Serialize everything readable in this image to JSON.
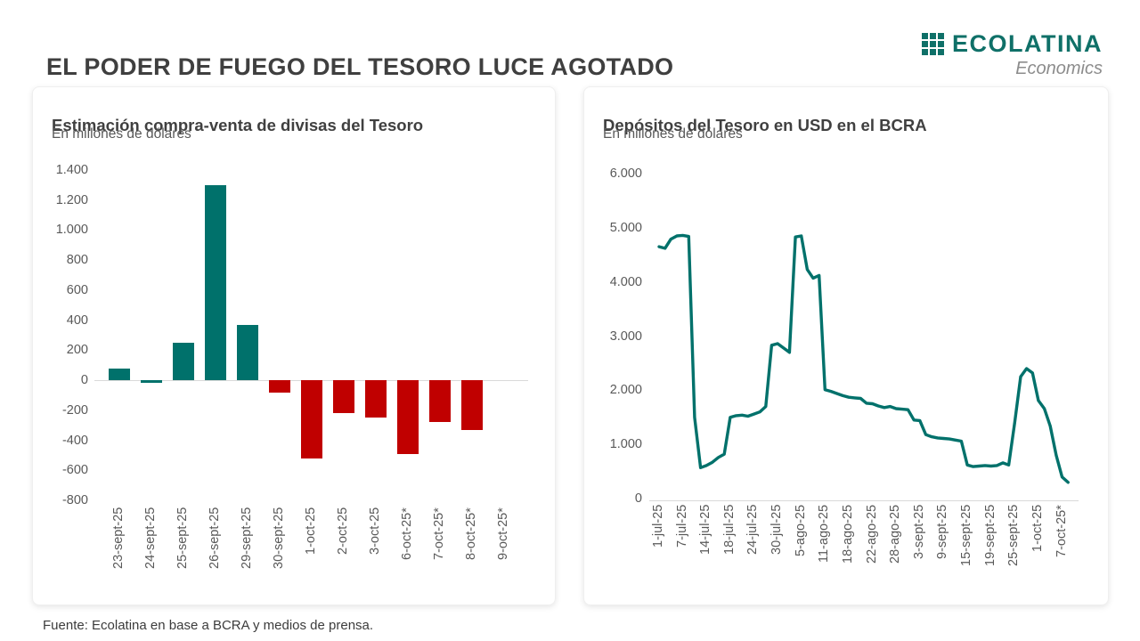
{
  "page": {
    "title": "EL PODER DE FUEGO DEL TESORO LUCE AGOTADO",
    "footer": "Fuente: Ecolatina en base a BCRA y medios de prensa."
  },
  "logo": {
    "name": "ECOLATINA",
    "tagline": "Economics"
  },
  "colors": {
    "brand_teal": "#0F7068",
    "series_teal": "#00716B",
    "series_red": "#C00000",
    "grid": "#D9D9D9",
    "axis_text": "#595959",
    "title_text": "#3F3F3F"
  },
  "chart_data": [
    {
      "type": "bar",
      "title": "Estimación compra-venta de divisas del Tesoro",
      "subtitle": "En millones de dólares",
      "categories": [
        "23-sept-25",
        "24-sept-25",
        "25-sept-25",
        "26-sept-25",
        "29-sept-25",
        "30-sept-25",
        "1-oct-25",
        "2-oct-25",
        "3-oct-25",
        "6-oct-25*",
        "7-oct-25*",
        "8-oct-25*",
        "9-oct-25*"
      ],
      "values": [
        80,
        -20,
        250,
        1300,
        370,
        -80,
        -520,
        -220,
        -250,
        -490,
        -280,
        -330,
        0
      ],
      "bar_colors": [
        "#00716B",
        "#00716B",
        "#00716B",
        "#00716B",
        "#00716B",
        "#C00000",
        "#C00000",
        "#C00000",
        "#C00000",
        "#C00000",
        "#C00000",
        "#C00000",
        "#00716B"
      ],
      "ylim": [
        -800,
        1400
      ],
      "yticks": [
        1400,
        1200,
        1000,
        800,
        600,
        400,
        200,
        0,
        -200,
        -400,
        -600,
        -800
      ],
      "ytick_labels": [
        "1.400",
        "1.200",
        "1.000",
        "800",
        "600",
        "400",
        "200",
        "0",
        "-200",
        "-400",
        "-600",
        "-800"
      ],
      "grid": "zero-line-only",
      "legend": "none"
    },
    {
      "type": "line",
      "title": "Depósitos del Tesoro en USD en el BCRA",
      "subtitle": "En millones de dólares",
      "line_color": "#00716B",
      "x": [
        "1-jul",
        "2-jul",
        "3-jul",
        "4-jul",
        "7-jul",
        "8-jul",
        "10-jul",
        "11-jul",
        "14-jul",
        "15-jul",
        "16-jul",
        "17-jul",
        "18-jul",
        "21-jul",
        "22-jul",
        "23-jul",
        "24-jul",
        "25-jul",
        "28-jul",
        "29-jul",
        "30-jul",
        "31-jul",
        "1-ago",
        "4-ago",
        "5-ago",
        "6-ago",
        "7-ago",
        "8-ago",
        "11-ago",
        "12-ago",
        "13-ago",
        "14-ago",
        "18-ago",
        "19-ago",
        "20-ago",
        "21-ago",
        "22-ago",
        "25-ago",
        "26-ago",
        "27-ago",
        "28-ago",
        "29-ago",
        "1-sept",
        "2-sept",
        "3-sept",
        "4-sept",
        "5-sept",
        "8-sept",
        "9-sept",
        "10-sept",
        "11-sept",
        "12-sept",
        "15-sept",
        "16-sept",
        "17-sept",
        "18-sept",
        "19-sept",
        "22-sept",
        "23-sept",
        "24-sept",
        "25-sept",
        "26-sept",
        "29-sept",
        "30-sept",
        "1-oct",
        "2-oct",
        "3-oct",
        "6-oct",
        "7-oct",
        "8-oct"
      ],
      "values": [
        4650,
        4620,
        4790,
        4850,
        4860,
        4840,
        1500,
        570,
        610,
        670,
        760,
        820,
        1500,
        1530,
        1540,
        1520,
        1560,
        1600,
        1700,
        2830,
        2860,
        2780,
        2700,
        4830,
        4850,
        4230,
        4070,
        4120,
        2010,
        1980,
        1940,
        1900,
        1870,
        1860,
        1850,
        1760,
        1750,
        1710,
        1680,
        1700,
        1660,
        1650,
        1640,
        1450,
        1440,
        1180,
        1140,
        1120,
        1110,
        1100,
        1080,
        1060,
        620,
        590,
        600,
        610,
        600,
        610,
        660,
        620,
        1400,
        2250,
        2400,
        2320,
        1810,
        1660,
        1340,
        800,
        400,
        300
      ],
      "ylim": [
        0,
        6000
      ],
      "yticks": [
        6000,
        5000,
        4000,
        3000,
        2000,
        1000,
        0
      ],
      "ytick_labels": [
        "6.000",
        "5.000",
        "4.000",
        "3.000",
        "2.000",
        "1.000",
        "0"
      ],
      "xtick_indices": [
        0,
        4,
        8,
        12,
        16,
        20,
        24,
        28,
        32,
        36,
        40,
        44,
        48,
        52,
        56,
        60,
        64,
        68
      ],
      "xtick_labels": [
        "1-jul-25",
        "7-jul-25",
        "14-jul-25",
        "18-jul-25",
        "24-jul-25",
        "30-jul-25",
        "5-ago-25",
        "11-ago-25",
        "18-ago-25",
        "22-ago-25",
        "28-ago-25",
        "3-sept-25",
        "9-sept-25",
        "15-sept-25",
        "19-sept-25",
        "25-sept-25",
        "1-oct-25",
        "7-oct-25*"
      ],
      "grid": "zero-line-only",
      "legend": "none"
    }
  ]
}
